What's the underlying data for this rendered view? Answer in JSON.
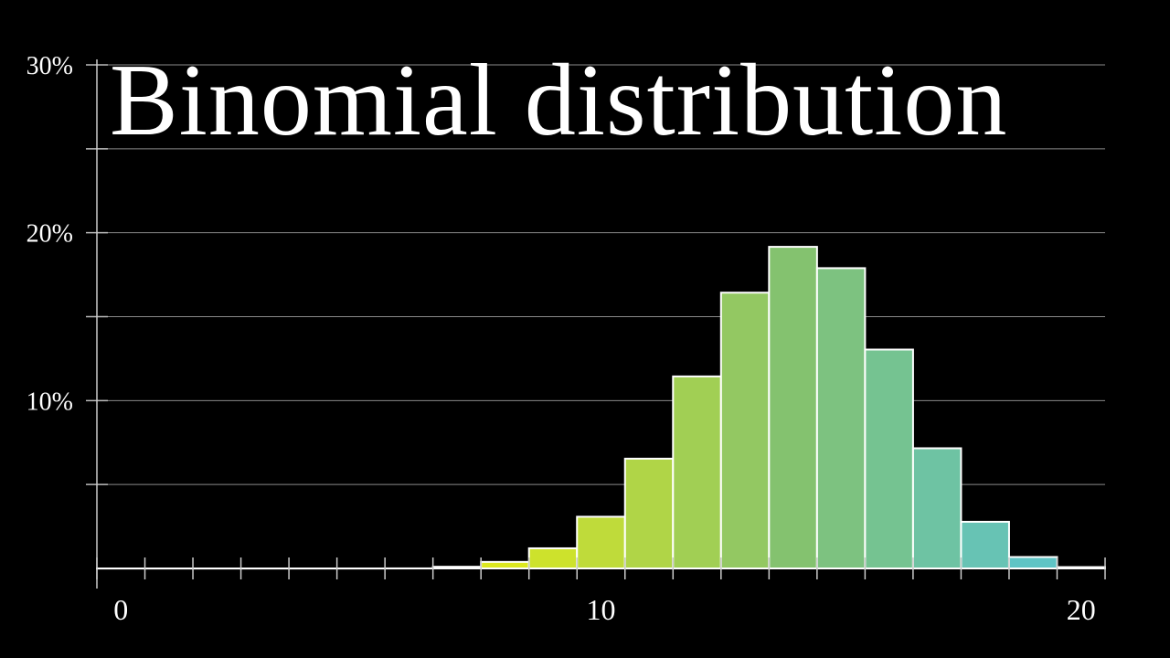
{
  "title": "Binomial distribution",
  "chart_data": {
    "type": "bar",
    "title": "Binomial distribution",
    "x": [
      0,
      1,
      2,
      3,
      4,
      5,
      6,
      7,
      8,
      9,
      10,
      11,
      12,
      13,
      14,
      15,
      16,
      17,
      18,
      19,
      20
    ],
    "values": [
      0,
      0,
      0,
      0,
      0,
      0.0004,
      0.0037,
      0.1,
      0.39,
      1.2,
      3.08,
      6.54,
      11.44,
      16.43,
      19.16,
      17.89,
      13.04,
      7.16,
      2.78,
      0.68,
      0.08
    ],
    "value_unit": "%",
    "xlim": [
      0,
      20
    ],
    "ylim": [
      0,
      30
    ],
    "x_tick_labels": [
      "0",
      "10",
      "20"
    ],
    "y_tick_labels": [
      "10%",
      "20%",
      "30%"
    ],
    "grid": true,
    "grid_step": 5,
    "color_stops": [
      {
        "x": 8,
        "color": "#dce81f"
      },
      {
        "x": 14,
        "color": "#84c26f"
      },
      {
        "x": 20,
        "color": "#58c4d6"
      }
    ],
    "bar_edge_color": "#ffffff",
    "xlabel": "",
    "ylabel": ""
  }
}
